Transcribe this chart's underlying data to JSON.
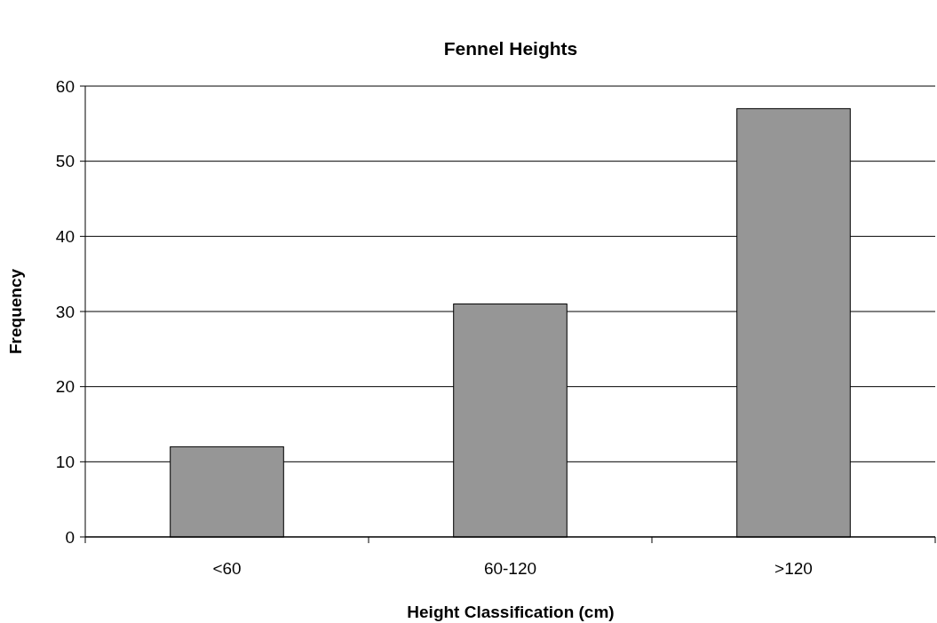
{
  "chart_data": {
    "type": "bar",
    "title": "Fennel Heights",
    "xlabel": "Height Classification (cm)",
    "ylabel": "Frequency",
    "categories": [
      "<60",
      "60-120",
      ">120"
    ],
    "values": [
      12,
      31,
      57
    ],
    "color": "#969696",
    "ylim": [
      0,
      60
    ],
    "yticks": [
      0,
      10,
      20,
      30,
      40,
      50,
      60
    ],
    "grid": "y"
  }
}
